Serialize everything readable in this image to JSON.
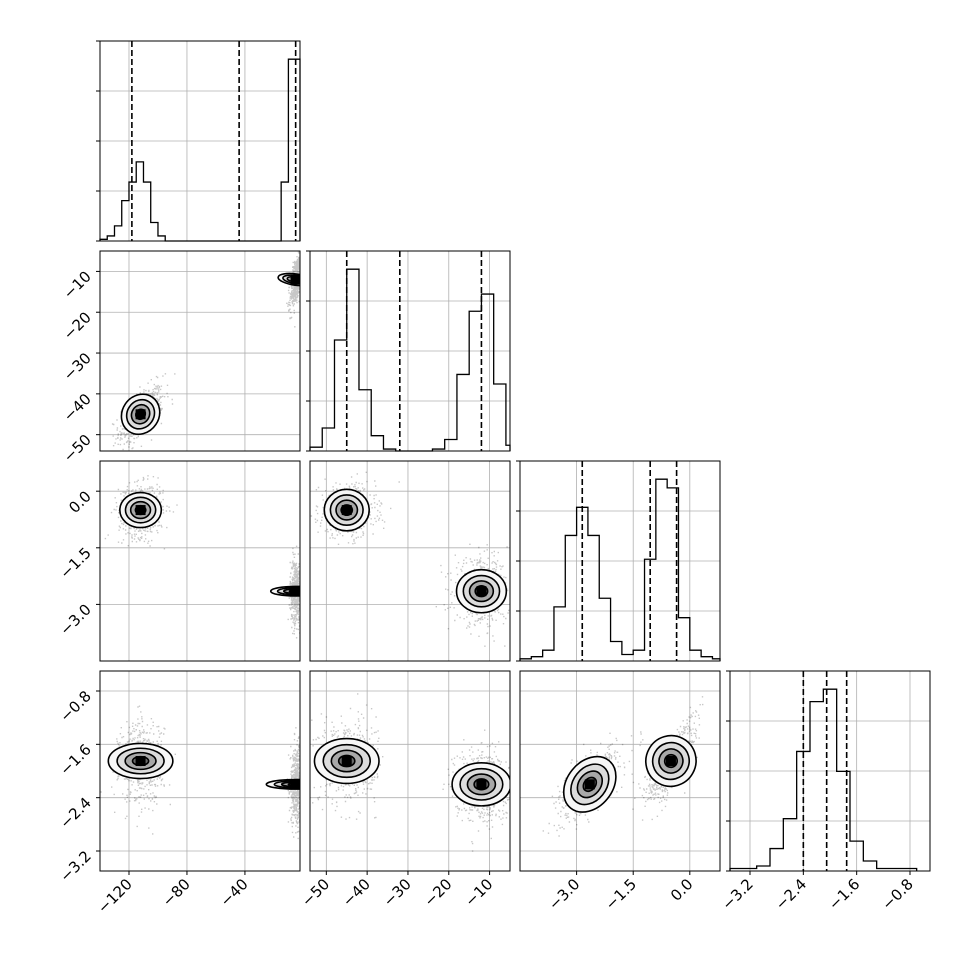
{
  "chart_data": {
    "type": "corner",
    "variables": [
      {
        "range": [
          -140,
          -2
        ],
        "ticks": [
          -120,
          -80,
          -40
        ],
        "tick_labels": [
          "−120",
          "−80",
          "−40"
        ],
        "quantiles": [
          -118,
          -44,
          -5
        ],
        "hist": {
          "edges": [
            -140,
            -135,
            -130,
            -125,
            -120,
            -115,
            -110,
            -105,
            -100,
            -95,
            -90,
            -85,
            -80,
            -75,
            -70,
            -65,
            -60,
            -55,
            -50,
            -45,
            -40,
            -35,
            -30,
            -25,
            -20,
            -15,
            -10,
            -5,
            -2
          ],
          "counts": [
            1,
            3,
            9,
            24,
            35,
            47,
            35,
            11,
            3,
            0,
            0,
            0,
            0,
            0,
            0,
            0,
            0,
            0,
            0,
            0,
            0,
            0,
            0,
            0,
            0,
            35,
            108,
            108
          ]
        }
      },
      {
        "range": [
          -54,
          -5
        ],
        "ticks": [
          -50,
          -40,
          -30,
          -20,
          -10
        ],
        "tick_labels": [
          "−50",
          "−40",
          "−30",
          "−20",
          "−10"
        ],
        "quantiles": [
          -45,
          -32,
          -12
        ],
        "hist": {
          "edges": [
            -54,
            -51,
            -48,
            -45,
            -42,
            -39,
            -36,
            -33,
            -30,
            -27,
            -24,
            -21,
            -18,
            -15,
            -12,
            -9,
            -6,
            -5
          ],
          "counts": [
            2,
            12,
            58,
            95,
            32,
            8,
            1,
            0,
            0,
            0,
            1,
            6,
            40,
            73,
            82,
            35,
            3
          ]
        }
      },
      {
        "range": [
          -4.5,
          0.8
        ],
        "ticks": [
          -3.0,
          -1.5,
          0.0
        ],
        "tick_labels": [
          "−3.0",
          "−1.5",
          "0.0"
        ],
        "quantiles": [
          -2.85,
          -1.05,
          -0.35
        ],
        "hist": {
          "edges": [
            -4.5,
            -4.2,
            -3.9,
            -3.6,
            -3.3,
            -3.0,
            -2.7,
            -2.4,
            -2.1,
            -1.8,
            -1.5,
            -1.2,
            -0.9,
            -0.6,
            -0.3,
            0.0,
            0.3,
            0.6,
            0.8
          ],
          "counts": [
            1,
            2,
            5,
            25,
            58,
            71,
            58,
            29,
            9,
            3,
            5,
            47,
            84,
            80,
            20,
            5,
            2,
            1
          ]
        }
      },
      {
        "range": [
          -3.5,
          -0.5
        ],
        "ticks": [
          -3.2,
          -2.4,
          -1.6,
          -0.8
        ],
        "tick_labels": [
          "−3.2",
          "−2.4",
          "−1.6",
          "−0.8"
        ],
        "quantiles": [
          -2.4,
          -2.05,
          -1.75
        ],
        "hist": {
          "edges": [
            -3.5,
            -3.3,
            -3.1,
            -2.9,
            -2.7,
            -2.5,
            -2.3,
            -2.1,
            -1.9,
            -1.7,
            -1.5,
            -1.3,
            -1.1,
            -0.9,
            -0.7
          ],
          "counts": [
            1,
            1,
            2,
            9,
            21,
            48,
            68,
            73,
            40,
            12,
            4,
            1,
            1,
            1
          ]
        }
      }
    ],
    "modes": [
      {
        "center": [
          -112,
          -45,
          -0.5,
          -1.85
        ],
        "sd": [
          5.5,
          2.5,
          0.25,
          0.22
        ]
      },
      {
        "center": [
          -5,
          -12,
          -2.65,
          -2.2
        ],
        "sd": [
          1.5,
          2.4,
          0.3,
          0.2
        ]
      }
    ],
    "correlations": [
      [
        1.0,
        0.6,
        0.0,
        0.0
      ],
      [
        0.6,
        1.0,
        0.0,
        0.0
      ],
      [
        0.0,
        0.0,
        1.0,
        0.75
      ],
      [
        0.0,
        0.0,
        0.75,
        1.0
      ]
    ],
    "grid": true,
    "colors": {
      "line": "#000000",
      "grid": "#b0b0b0",
      "contour_fill": "#808080"
    }
  }
}
